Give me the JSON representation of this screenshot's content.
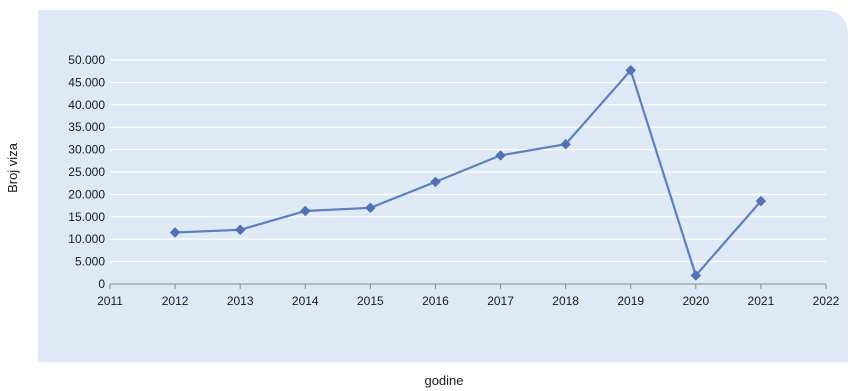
{
  "colors": {
    "panel_background": "#dfe9f5",
    "gridline": "#ffffff",
    "series_line": "#5b7fc0",
    "marker": "#4f72b5",
    "axis_line": "#8a8a8a"
  },
  "chart_data": {
    "type": "line",
    "title": "",
    "xlabel": "godine",
    "ylabel": "Broj viza",
    "xlim": [
      2011,
      2022
    ],
    "ylim": [
      0,
      50000
    ],
    "x_ticks": [
      "2011",
      "2012",
      "2013",
      "2014",
      "2015",
      "2016",
      "2017",
      "2018",
      "2019",
      "2020",
      "2021",
      "2022"
    ],
    "y_ticks": [
      "0",
      "5.000",
      "10.000",
      "15.000",
      "20.000",
      "25.000",
      "30.000",
      "35.000",
      "40.000",
      "45.000",
      "50.000"
    ],
    "grid": true,
    "legend": "none",
    "marker": "diamond",
    "series": [
      {
        "x": [
          2012,
          2013,
          2014,
          2015,
          2016,
          2017,
          2018,
          2019,
          2020,
          2021
        ],
        "values": [
          11500,
          12100,
          16300,
          17000,
          22800,
          28700,
          31200,
          47700,
          1900,
          18500
        ]
      }
    ]
  }
}
